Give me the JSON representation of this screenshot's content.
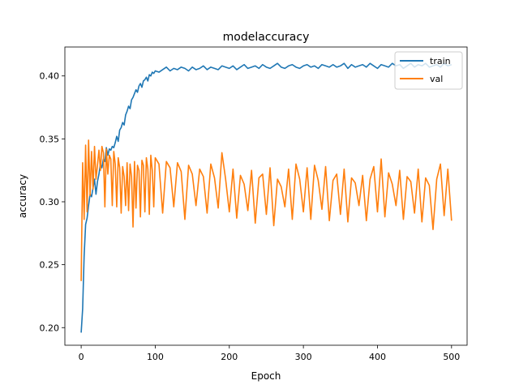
{
  "chart_data": {
    "type": "line",
    "title": "modelaccuracy",
    "xlabel": "Epoch",
    "ylabel": "accuracy",
    "xlim": [
      -22,
      521
    ],
    "ylim": [
      0.186,
      0.423
    ],
    "xticks": [
      0,
      100,
      200,
      300,
      400,
      500
    ],
    "yticks": [
      0.2,
      0.25,
      0.3,
      0.35,
      0.4
    ],
    "grid": false,
    "legend": {
      "position": "top-right"
    },
    "series": [
      {
        "name": "train",
        "color": "#1f77b4",
        "x": [
          0,
          2,
          4,
          6,
          8,
          10,
          12,
          14,
          16,
          18,
          20,
          22,
          24,
          26,
          28,
          30,
          32,
          34,
          36,
          38,
          40,
          42,
          44,
          46,
          48,
          50,
          52,
          54,
          56,
          58,
          60,
          62,
          64,
          66,
          68,
          70,
          72,
          74,
          76,
          78,
          80,
          82,
          84,
          86,
          88,
          90,
          92,
          94,
          96,
          98,
          100,
          105,
          110,
          115,
          120,
          125,
          130,
          135,
          140,
          145,
          150,
          155,
          160,
          165,
          170,
          175,
          180,
          185,
          190,
          195,
          200,
          205,
          210,
          215,
          220,
          225,
          230,
          235,
          240,
          245,
          250,
          255,
          260,
          265,
          270,
          275,
          280,
          285,
          290,
          295,
          300,
          305,
          310,
          315,
          320,
          325,
          330,
          335,
          340,
          345,
          350,
          355,
          360,
          365,
          370,
          375,
          380,
          385,
          390,
          395,
          400,
          405,
          410,
          415,
          420,
          425,
          430,
          435,
          440,
          445,
          450,
          455,
          460,
          465,
          470,
          475,
          480,
          485,
          490,
          495,
          500
        ],
        "values": [
          0.196,
          0.215,
          0.257,
          0.282,
          0.287,
          0.297,
          0.306,
          0.304,
          0.311,
          0.318,
          0.306,
          0.316,
          0.322,
          0.33,
          0.327,
          0.334,
          0.332,
          0.343,
          0.337,
          0.342,
          0.341,
          0.344,
          0.343,
          0.347,
          0.352,
          0.348,
          0.357,
          0.359,
          0.363,
          0.361,
          0.369,
          0.372,
          0.376,
          0.374,
          0.381,
          0.383,
          0.386,
          0.389,
          0.387,
          0.392,
          0.394,
          0.391,
          0.396,
          0.397,
          0.399,
          0.396,
          0.401,
          0.4,
          0.403,
          0.402,
          0.404,
          0.403,
          0.405,
          0.407,
          0.404,
          0.406,
          0.405,
          0.407,
          0.406,
          0.404,
          0.407,
          0.405,
          0.406,
          0.408,
          0.405,
          0.407,
          0.406,
          0.405,
          0.408,
          0.407,
          0.406,
          0.408,
          0.405,
          0.407,
          0.409,
          0.406,
          0.407,
          0.408,
          0.406,
          0.409,
          0.407,
          0.406,
          0.408,
          0.41,
          0.407,
          0.406,
          0.408,
          0.409,
          0.407,
          0.406,
          0.408,
          0.409,
          0.407,
          0.408,
          0.406,
          0.409,
          0.408,
          0.407,
          0.409,
          0.407,
          0.408,
          0.41,
          0.406,
          0.409,
          0.407,
          0.408,
          0.409,
          0.407,
          0.41,
          0.408,
          0.406,
          0.409,
          0.408,
          0.407,
          0.41,
          0.408,
          0.409,
          0.406,
          0.408,
          0.41,
          0.407,
          0.409,
          0.408,
          0.41,
          0.407,
          0.408,
          0.409,
          0.407,
          0.41,
          0.408,
          0.409
        ]
      },
      {
        "name": "val",
        "color": "#ff7f0e",
        "x": [
          0,
          2,
          4,
          6,
          8,
          10,
          12,
          14,
          16,
          18,
          20,
          22,
          24,
          26,
          28,
          30,
          32,
          34,
          36,
          38,
          40,
          42,
          44,
          46,
          48,
          50,
          52,
          54,
          56,
          58,
          60,
          62,
          64,
          66,
          68,
          70,
          72,
          74,
          76,
          78,
          80,
          82,
          84,
          86,
          88,
          90,
          92,
          94,
          96,
          98,
          100,
          105,
          110,
          115,
          120,
          125,
          130,
          135,
          140,
          145,
          150,
          155,
          160,
          165,
          170,
          175,
          180,
          185,
          190,
          195,
          200,
          205,
          210,
          215,
          220,
          225,
          230,
          235,
          240,
          245,
          250,
          255,
          260,
          265,
          270,
          275,
          280,
          285,
          290,
          295,
          300,
          305,
          310,
          315,
          320,
          325,
          330,
          335,
          340,
          345,
          350,
          355,
          360,
          365,
          370,
          375,
          380,
          385,
          390,
          395,
          400,
          405,
          410,
          415,
          420,
          425,
          430,
          435,
          440,
          445,
          450,
          455,
          460,
          465,
          470,
          475,
          480,
          485,
          490,
          495,
          500
        ],
        "values": [
          0.237,
          0.331,
          0.286,
          0.345,
          0.292,
          0.349,
          0.305,
          0.34,
          0.31,
          0.344,
          0.318,
          0.329,
          0.341,
          0.325,
          0.344,
          0.339,
          0.296,
          0.342,
          0.322,
          0.337,
          0.334,
          0.297,
          0.34,
          0.33,
          0.296,
          0.335,
          0.327,
          0.291,
          0.328,
          0.32,
          0.297,
          0.331,
          0.293,
          0.33,
          0.32,
          0.28,
          0.332,
          0.295,
          0.329,
          0.325,
          0.288,
          0.333,
          0.329,
          0.292,
          0.335,
          0.326,
          0.29,
          0.337,
          0.325,
          0.296,
          0.335,
          0.33,
          0.291,
          0.332,
          0.327,
          0.296,
          0.331,
          0.324,
          0.286,
          0.329,
          0.322,
          0.297,
          0.326,
          0.32,
          0.291,
          0.33,
          0.319,
          0.295,
          0.339,
          0.318,
          0.292,
          0.326,
          0.287,
          0.321,
          0.314,
          0.293,
          0.325,
          0.283,
          0.319,
          0.322,
          0.29,
          0.327,
          0.281,
          0.318,
          0.312,
          0.296,
          0.326,
          0.286,
          0.33,
          0.318,
          0.292,
          0.327,
          0.286,
          0.329,
          0.317,
          0.294,
          0.328,
          0.285,
          0.317,
          0.322,
          0.29,
          0.326,
          0.284,
          0.319,
          0.315,
          0.297,
          0.321,
          0.285,
          0.318,
          0.328,
          0.292,
          0.334,
          0.288,
          0.323,
          0.314,
          0.297,
          0.325,
          0.286,
          0.32,
          0.316,
          0.291,
          0.326,
          0.284,
          0.319,
          0.313,
          0.278,
          0.318,
          0.33,
          0.289,
          0.326,
          0.285
        ]
      }
    ]
  }
}
